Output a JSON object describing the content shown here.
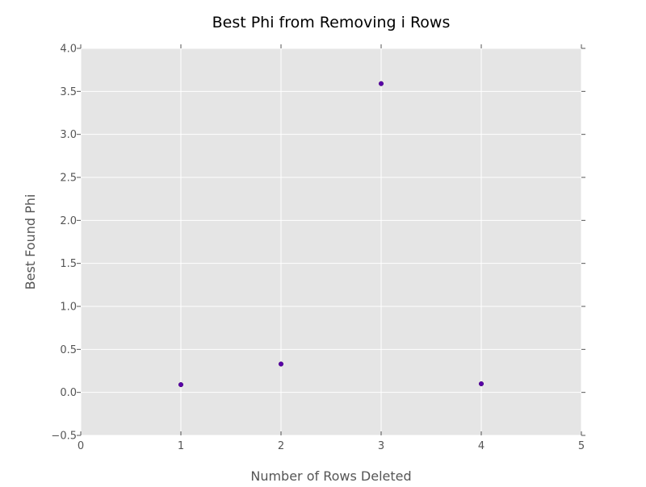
{
  "chart_data": {
    "type": "scatter",
    "title": "Best Phi from Removing i Rows",
    "xlabel": "Number of Rows Deleted",
    "ylabel": "Best Found Phi",
    "xlim": [
      0,
      5
    ],
    "ylim": [
      -0.5,
      4.0
    ],
    "xticks": [
      0,
      1,
      2,
      3,
      4,
      5
    ],
    "xtick_labels": [
      "0",
      "1",
      "2",
      "3",
      "4",
      "5"
    ],
    "yticks": [
      -0.5,
      0.0,
      0.5,
      1.0,
      1.5,
      2.0,
      2.5,
      3.0,
      3.5,
      4.0
    ],
    "ytick_labels": [
      "−0.5",
      "0.0",
      "0.5",
      "1.0",
      "1.5",
      "2.0",
      "2.5",
      "3.0",
      "3.5",
      "4.0"
    ],
    "grid": true,
    "style": "ggplot",
    "series": [
      {
        "x": [
          1,
          2,
          3,
          4
        ],
        "values": [
          0.09,
          0.33,
          3.59,
          0.1
        ],
        "color": "#5a00a8"
      }
    ]
  },
  "colors": {
    "plot_background": "#e5e5e5",
    "grid": "#ffffff",
    "text": "#555555",
    "title": "#000000"
  }
}
